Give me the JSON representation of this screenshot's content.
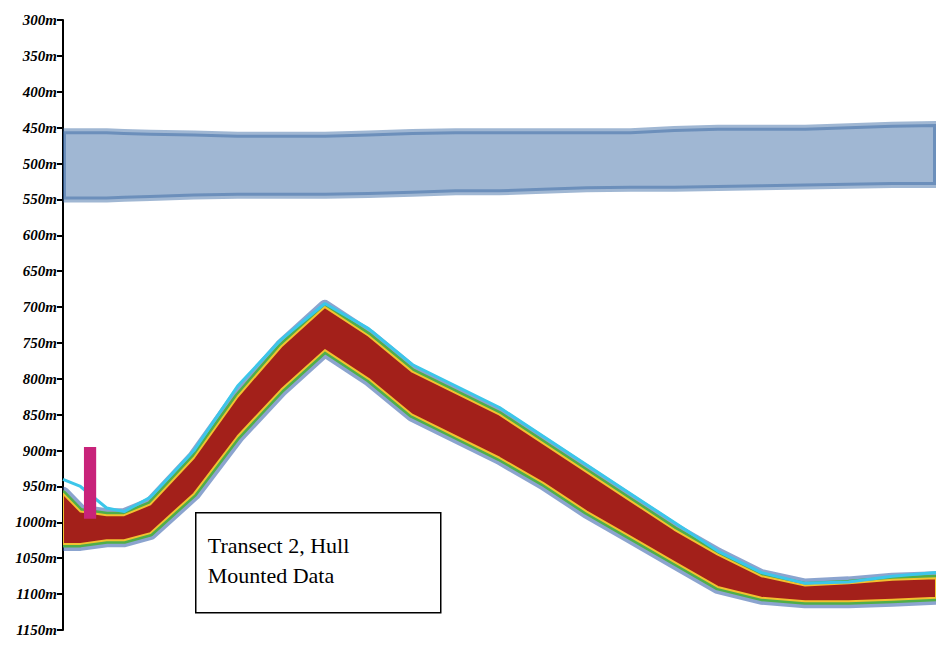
{
  "chart_data": {
    "type": "echogram",
    "annotation": "Transect 2, Hull Mounted Data",
    "x": [
      0,
      2,
      5,
      7,
      10,
      15,
      20,
      25,
      30,
      35,
      40,
      45,
      50,
      55,
      60,
      65,
      70,
      75,
      80,
      85,
      90,
      95,
      100
    ],
    "xlim": [
      0,
      100
    ],
    "ylim": [
      300,
      1150
    ],
    "yticks": [
      {
        "value": 300,
        "label": "300m"
      },
      {
        "value": 350,
        "label": "350m"
      },
      {
        "value": 400,
        "label": "400m"
      },
      {
        "value": 450,
        "label": "450m"
      },
      {
        "value": 500,
        "label": "500m"
      },
      {
        "value": 550,
        "label": "550m"
      },
      {
        "value": 600,
        "label": "600m"
      },
      {
        "value": 650,
        "label": "650m"
      },
      {
        "value": 700,
        "label": "700m"
      },
      {
        "value": 750,
        "label": "750m"
      },
      {
        "value": 800,
        "label": "800m"
      },
      {
        "value": 850,
        "label": "850m"
      },
      {
        "value": 900,
        "label": "900m"
      },
      {
        "value": 950,
        "label": "950m"
      },
      {
        "value": 1000,
        "label": "1000m"
      },
      {
        "value": 1050,
        "label": "1050m"
      },
      {
        "value": 1100,
        "label": "1100m"
      },
      {
        "value": 1150,
        "label": "1150m"
      }
    ],
    "tick_labels": "y",
    "grid": false,
    "series": [
      {
        "type": "band",
        "color": "#2c5f9e",
        "top": [
          455,
          455,
          455,
          456,
          457,
          458,
          460,
          460,
          460,
          458,
          456,
          455,
          455,
          455,
          455,
          455,
          452,
          450,
          450,
          450,
          448,
          446,
          445
        ],
        "bottom": [
          550,
          550,
          550,
          549,
          548,
          546,
          545,
          545,
          545,
          544,
          542,
          540,
          540,
          538,
          536,
          535,
          535,
          534,
          533,
          532,
          531,
          530,
          530
        ]
      },
      {
        "type": "band",
        "color": "#a3201a",
        "top": [
          960,
          985,
          990,
          990,
          975,
          910,
          825,
          755,
          700,
          740,
          790,
          820,
          850,
          890,
          930,
          970,
          1010,
          1045,
          1075,
          1088,
          1085,
          1080,
          1078
        ],
        "bottom": [
          1030,
          1030,
          1025,
          1025,
          1015,
          960,
          880,
          815,
          760,
          800,
          850,
          880,
          910,
          945,
          985,
          1020,
          1055,
          1090,
          1105,
          1110,
          1110,
          1108,
          1105
        ]
      },
      {
        "type": "line",
        "color": "#3cc6ea",
        "values": [
          940,
          950,
          980,
          985,
          965,
          900,
          810,
          745,
          695,
          730,
          780,
          810,
          840,
          880,
          920,
          960,
          1000,
          1040,
          1070,
          1085,
          1083,
          1075,
          1070
        ]
      }
    ],
    "marker_bar": {
      "x0": 2.4,
      "x1": 3.8,
      "top": 895,
      "bottom": 995,
      "color": "#c8237a"
    }
  }
}
